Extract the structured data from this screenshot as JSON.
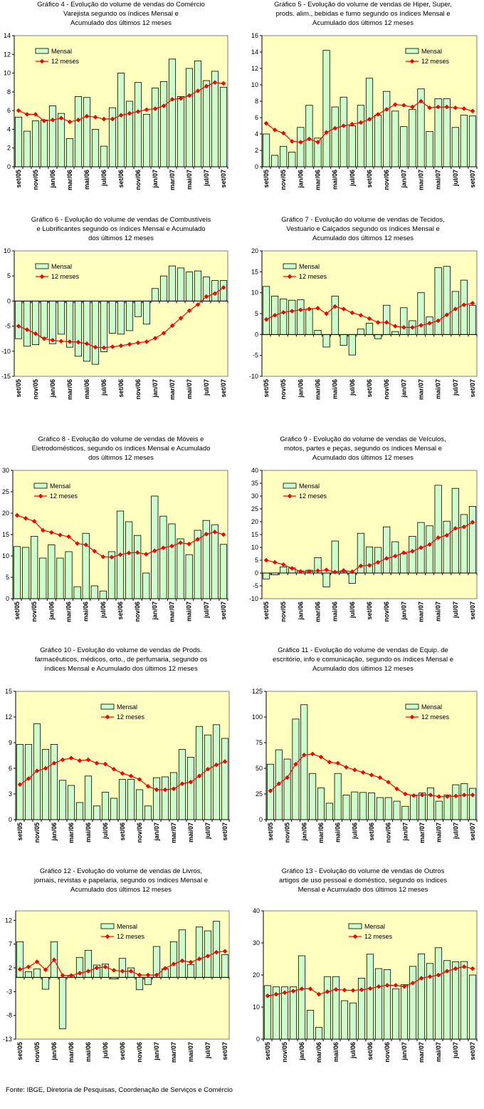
{
  "source": "Fonte: IBGE, Diretoria de Pesquisas, Coordenação de Serviços e Comércio",
  "colors": {
    "bar_fill": "#ccffcc",
    "line": "#ff0000",
    "plot_bg": "#ffffc0"
  },
  "chart_data": [
    {
      "type": "bar",
      "title": "Gráfico 4 - Evolução do volume de vendas do Comércio\nVarejista segundo os índices Mensal e\nAcumulado dos últimos 12 meses",
      "ylim": [
        0,
        14
      ],
      "yticks": [
        0,
        2,
        4,
        6,
        8,
        10,
        12,
        14
      ],
      "xticklabels": [
        "set/05",
        "nov/05",
        "jan/06",
        "mar/06",
        "mai/06",
        "jul/06",
        "set/06",
        "nov/06",
        "jan/07",
        "mar/07",
        "mai/07",
        "jul/07",
        "set/07"
      ],
      "legend": "top-left",
      "series": [
        {
          "name": "Mensal",
          "kind": "bar",
          "values": [
            5.3,
            3.8,
            4.9,
            5.0,
            6.5,
            5.7,
            3.0,
            7.5,
            7.4,
            4.0,
            2.2,
            6.3,
            10.0,
            7.0,
            9.0,
            5.6,
            8.4,
            9.1,
            11.5,
            7.5,
            10.5,
            11.3,
            9.2,
            10.2,
            8.5
          ]
        },
        {
          "name": "12 meses",
          "kind": "line",
          "values": [
            6.0,
            5.6,
            5.6,
            4.9,
            5.0,
            5.2,
            4.8,
            5.0,
            5.4,
            5.3,
            5.1,
            5.1,
            5.5,
            5.7,
            5.9,
            6.1,
            6.2,
            6.5,
            7.2,
            7.3,
            7.6,
            8.1,
            8.6,
            9.0,
            8.9
          ]
        }
      ]
    },
    {
      "type": "bar",
      "title": "Gráfico 5 - Evolução do volume de vendas de Hiper, Super,\nprods. alim., bebidas e fumo segundo os índices Mensal e\nAcumulado dos últimos 12 meses",
      "ylim": [
        0,
        16
      ],
      "yticks": [
        0,
        2,
        4,
        6,
        8,
        10,
        12,
        14,
        16
      ],
      "xticklabels": [
        "set/05",
        "nov/05",
        "jan/06",
        "mar/06",
        "mai/06",
        "jul/06",
        "set/06",
        "nov/06",
        "jan/07",
        "mar/07",
        "mai/07",
        "jul/07",
        "set/07"
      ],
      "legend": "top-right",
      "series": [
        {
          "name": "Mensal",
          "kind": "bar",
          "values": [
            4.0,
            1.4,
            2.5,
            1.8,
            4.8,
            7.5,
            3.5,
            14.2,
            7.3,
            8.5,
            5.0,
            7.5,
            10.8,
            6.3,
            9.2,
            6.8,
            4.9,
            7.0,
            9.5,
            4.3,
            8.3,
            8.3,
            4.8,
            6.3,
            6.2
          ]
        },
        {
          "name": "12 meses",
          "kind": "line",
          "values": [
            5.3,
            4.5,
            4.1,
            3.1,
            3.0,
            3.4,
            3.0,
            4.2,
            4.7,
            5.0,
            5.2,
            5.4,
            5.8,
            6.4,
            7.0,
            7.6,
            7.5,
            7.3,
            8.0,
            7.2,
            7.3,
            7.3,
            7.2,
            7.1,
            6.8
          ]
        }
      ]
    },
    {
      "type": "bar",
      "title": "Gráfico 6 - Evolução do volume de vendas de Combustíveis\ne Lubrificantes segundo os índices Mensal e Acumulado\ndos últimos 12 meses",
      "ylim": [
        -15,
        10
      ],
      "yticks": [
        -15,
        -10,
        -5,
        0,
        5,
        10
      ],
      "xticklabels": [
        "set/05",
        "nov/05",
        "jan/06",
        "mar/06",
        "mai/06",
        "jul/06",
        "set/06",
        "nov/06",
        "jan/07",
        "mar/07",
        "mai/07",
        "jul/07",
        "set/07"
      ],
      "legend": "top-left",
      "series": [
        {
          "name": "Mensal",
          "kind": "bar",
          "values": [
            -7.5,
            -9.0,
            -8.7,
            -7.3,
            -8.5,
            -6.6,
            -9.2,
            -11.0,
            -12.0,
            -12.6,
            -10.1,
            -6.4,
            -6.6,
            -5.9,
            -3.1,
            -4.6,
            2.5,
            5.0,
            7.0,
            6.6,
            5.8,
            6.0,
            4.8,
            4.1,
            4.1
          ]
        },
        {
          "name": "12 meses",
          "kind": "line",
          "values": [
            -5.0,
            -5.7,
            -6.5,
            -7.5,
            -7.8,
            -8.0,
            -8.1,
            -8.2,
            -8.5,
            -9.2,
            -9.3,
            -9.1,
            -8.9,
            -8.6,
            -8.3,
            -8.1,
            -7.4,
            -6.4,
            -4.9,
            -3.4,
            -1.9,
            -0.7,
            0.9,
            1.5,
            2.7
          ]
        }
      ]
    },
    {
      "type": "bar",
      "title": "Gráfico 7 - Evolução do volume de vendas de Tecidos,\nVestuário e Calçados segundo os índices Mensal e\nAcumulado dos últimos 12 meses",
      "ylim": [
        -10,
        20
      ],
      "yticks": [
        -10,
        -5,
        0,
        5,
        10,
        15,
        20
      ],
      "xticklabels": [
        "set/05",
        "nov/05",
        "jan/06",
        "mar/06",
        "mai/06",
        "jul/06",
        "set/06",
        "nov/06",
        "jan/07",
        "mar/07",
        "mai/07",
        "jul/07",
        "set/07"
      ],
      "legend": "top-left",
      "series": [
        {
          "name": "Mensal",
          "kind": "bar",
          "values": [
            11.5,
            9.2,
            8.5,
            8.2,
            8.3,
            6.1,
            1.0,
            -3.0,
            9.2,
            -2.6,
            -4.9,
            1.3,
            2.7,
            -1.0,
            7.0,
            0.7,
            6.4,
            3.3,
            10.0,
            4.2,
            16.0,
            16.3,
            10.3,
            13.0,
            7.0
          ]
        },
        {
          "name": "12 meses",
          "kind": "line",
          "values": [
            3.6,
            4.6,
            5.3,
            5.6,
            5.9,
            6.1,
            6.3,
            5.0,
            6.7,
            6.1,
            5.2,
            4.6,
            3.8,
            2.9,
            2.9,
            2.0,
            1.7,
            1.7,
            2.2,
            2.7,
            3.3,
            4.7,
            6.1,
            7.1,
            7.5
          ]
        }
      ]
    },
    {
      "type": "bar",
      "title": "Gráfico 8 - Evolução do volume de vendas de Móveis e\nEletrodomésticos, segundo os índices Mensal e Acumulado\ndos últimos 12 meses",
      "ylim": [
        0,
        30
      ],
      "yticks": [
        0,
        5,
        10,
        15,
        20,
        25,
        30
      ],
      "xticklabels": [
        "set/05",
        "nov/05",
        "jan/06",
        "mar/06",
        "mai/06",
        "jul/06",
        "set/06",
        "nov/06",
        "jan/07",
        "mar/07",
        "mai/07",
        "jul/07",
        "set/07"
      ],
      "legend": "top-left",
      "series": [
        {
          "name": "Mensal",
          "kind": "bar",
          "values": [
            12.2,
            12.0,
            14.6,
            9.5,
            12.6,
            9.5,
            11.0,
            2.8,
            15.3,
            3.0,
            1.8,
            11.0,
            20.5,
            18.0,
            14.8,
            6.0,
            24.0,
            19.3,
            17.5,
            14.0,
            10.3,
            16.0,
            18.3,
            17.3,
            12.7
          ]
        },
        {
          "name": "12 meses",
          "kind": "line",
          "values": [
            19.5,
            18.8,
            18.1,
            16.0,
            15.5,
            14.9,
            14.5,
            12.9,
            12.6,
            11.1,
            9.8,
            9.7,
            10.3,
            10.7,
            10.8,
            10.4,
            11.2,
            11.9,
            12.3,
            13.1,
            12.8,
            13.9,
            15.1,
            15.6,
            15.0
          ]
        }
      ]
    },
    {
      "type": "bar",
      "title": "Gráfico 9 - Evolução do volume de vendas de Veículos,\nmotos, partes e peças, segundo os índices Mensal e\nAcumulado dos últimos 12 meses",
      "ylim": [
        -10,
        40
      ],
      "yticks": [
        -10,
        -5,
        0,
        5,
        10,
        15,
        20,
        25,
        30,
        35,
        40
      ],
      "xticklabels": [
        "set/05",
        "nov/05",
        "jan/06",
        "mar/06",
        "mai/06",
        "jul/06",
        "set/06",
        "nov/06",
        "jan/07",
        "mar/07",
        "mai/07",
        "jul/07",
        "set/07"
      ],
      "legend": "top-left",
      "series": [
        {
          "name": "Mensal",
          "kind": "bar",
          "values": [
            -2.3,
            -0.7,
            2.4,
            2.0,
            0.8,
            1.1,
            6.0,
            -5.4,
            12.5,
            0.5,
            -4.0,
            15.5,
            10.2,
            10.0,
            18.0,
            12.2,
            7.6,
            14.3,
            19.7,
            18.4,
            34.2,
            20.2,
            33.0,
            22.8,
            26.0
          ]
        },
        {
          "name": "12 meses",
          "kind": "line",
          "values": [
            5.0,
            4.2,
            3.3,
            1.8,
            0.6,
            0.6,
            0.9,
            1.2,
            0.4,
            1.0,
            0.5,
            2.8,
            3.0,
            4.2,
            5.7,
            6.6,
            7.9,
            8.5,
            9.9,
            11.1,
            13.8,
            14.7,
            17.4,
            18.0,
            19.8
          ]
        }
      ]
    },
    {
      "type": "bar",
      "title": "Gráfico 10 - Evolução do volume de vendas de Prods.\nfarmacêuticos, médicos, orto., de perfumaria, segundo os\níndices Mensal e Acumulado dos últimos 12 meses",
      "ylim": [
        0,
        15
      ],
      "yticks": [
        0,
        3,
        6,
        9,
        12,
        15
      ],
      "xticklabels": [
        "set/05",
        "nov/05",
        "jan/06",
        "mar/06",
        "mai/06",
        "jul/06",
        "set/06",
        "nov/06",
        "jan/07",
        "mar/07",
        "mai/07",
        "jul/07",
        "set/07"
      ],
      "legend": "top-center",
      "series": [
        {
          "name": "Mensal",
          "kind": "bar",
          "values": [
            8.8,
            8.8,
            11.2,
            8.2,
            8.8,
            4.6,
            4.0,
            2.0,
            5.1,
            1.6,
            3.2,
            2.5,
            4.7,
            4.7,
            3.5,
            1.6,
            4.9,
            5.0,
            5.5,
            8.2,
            7.3,
            10.9,
            9.9,
            11.1,
            9.5
          ]
        },
        {
          "name": "12 meses",
          "kind": "line",
          "values": [
            4.1,
            4.8,
            5.7,
            6.0,
            6.6,
            7.0,
            7.2,
            6.9,
            7.0,
            6.6,
            6.5,
            5.9,
            5.4,
            5.1,
            4.7,
            3.9,
            3.5,
            3.5,
            3.6,
            4.2,
            4.4,
            5.1,
            5.9,
            6.4,
            6.8
          ]
        }
      ]
    },
    {
      "type": "bar",
      "title": "Gráfico 11 - Evolução do volume de vendas de Equip. de\nescritório, info e comunicação, segundo os índices Mensal e\nAcumulado dos últimos 12 meses",
      "ylim": [
        0,
        125
      ],
      "yticks": [
        0,
        25,
        50,
        75,
        100,
        125
      ],
      "xticklabels": [
        "set/05",
        "nov/05",
        "jan/06",
        "mar/06",
        "mai/06",
        "jul/06",
        "set/06",
        "nov/06",
        "jan/07",
        "mar/07",
        "mai/07",
        "jul/07",
        "set/07"
      ],
      "legend": "top-right",
      "series": [
        {
          "name": "Mensal",
          "kind": "bar",
          "values": [
            54.0,
            68.0,
            59.0,
            98.0,
            112.0,
            45.0,
            31.0,
            16.0,
            45.0,
            24.0,
            27.0,
            26.5,
            26.0,
            21.5,
            21.5,
            18.0,
            13.0,
            24.0,
            26.0,
            31.0,
            18.0,
            24.0,
            34.0,
            35.0,
            30.5
          ]
        },
        {
          "name": "12 meses",
          "kind": "line",
          "values": [
            28.0,
            35.0,
            41.0,
            54.0,
            63.0,
            64.0,
            61.0,
            56.0,
            55.0,
            51.0,
            48.5,
            46.0,
            43.5,
            41.0,
            36.5,
            30.0,
            25.0,
            23.5,
            24.0,
            24.0,
            22.5,
            22.5,
            23.0,
            24.0,
            24.0
          ]
        }
      ]
    },
    {
      "type": "bar",
      "title": "Gráfico 12 - Evolução do volume de vendas de Livros,\njornais, revistas e papelaria, segundo os índices Mensal e\nAcumulado dos últimos 12 meses",
      "ylim": [
        -13,
        14
      ],
      "yticks": [
        -13,
        -8,
        -3,
        2,
        7,
        12
      ],
      "xticklabels": [
        "set/05",
        "nov/05",
        "jan/06",
        "mar/06",
        "mai/06",
        "jul/06",
        "set/06",
        "nov/06",
        "jan/07",
        "mar/07",
        "mai/07",
        "jul/07",
        "set/07"
      ],
      "legend": "top-center",
      "series": [
        {
          "name": "Mensal",
          "kind": "bar",
          "values": [
            7.5,
            1.2,
            1.8,
            -2.5,
            7.5,
            -10.8,
            0.3,
            4.2,
            5.7,
            2.6,
            2.8,
            -0.3,
            4.0,
            2.0,
            -2.6,
            -1.5,
            6.5,
            1.8,
            7.5,
            10.0,
            2.7,
            10.6,
            9.8,
            11.8,
            4.8
          ]
        },
        {
          "name": "12 meses",
          "kind": "line",
          "values": [
            1.7,
            2.2,
            3.3,
            1.6,
            3.7,
            0.4,
            0.4,
            0.9,
            1.3,
            2.0,
            2.2,
            1.5,
            1.3,
            1.3,
            0.5,
            0.5,
            0.5,
            1.9,
            2.8,
            3.5,
            3.2,
            3.9,
            4.5,
            5.3,
            5.5
          ]
        }
      ]
    },
    {
      "type": "bar",
      "title": "Gráfico 13 - Evolução do volume de vendas de Outros\nartigos de uso pessoal e doméstico, segundo os índices\nMensal e Acumulado dos últimos 12 meses",
      "ylim": [
        0,
        40
      ],
      "yticks": [
        0,
        10,
        20,
        30,
        40
      ],
      "xticklabels": [
        "set/05",
        "nov/05",
        "jan/06",
        "mar/06",
        "mai/06",
        "jul/06",
        "set/06",
        "nov/06",
        "jan/07",
        "mar/07",
        "mai/07",
        "jul/07",
        "set/07"
      ],
      "legend": "top-center",
      "series": [
        {
          "name": "Mensal",
          "kind": "bar",
          "values": [
            16.7,
            16.3,
            16.3,
            16.3,
            26.0,
            9.0,
            3.7,
            19.5,
            19.5,
            12.0,
            11.3,
            19.0,
            26.5,
            22.0,
            21.7,
            15.7,
            17.0,
            22.7,
            26.6,
            23.6,
            28.5,
            24.5,
            24.1,
            24.2,
            20.0
          ]
        },
        {
          "name": "12 meses",
          "kind": "line",
          "values": [
            13.5,
            14.0,
            14.5,
            15.0,
            15.7,
            15.7,
            14.0,
            14.8,
            15.5,
            15.3,
            15.2,
            15.4,
            15.8,
            16.4,
            16.8,
            16.8,
            16.4,
            17.5,
            19.0,
            19.5,
            20.0,
            21.2,
            22.0,
            22.6,
            22.0
          ]
        }
      ]
    }
  ]
}
